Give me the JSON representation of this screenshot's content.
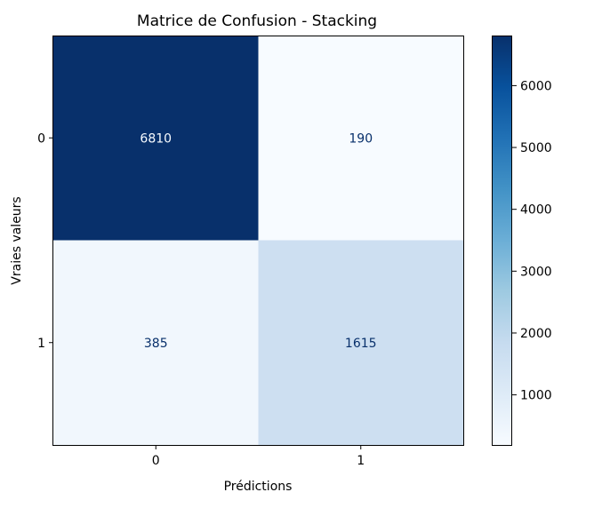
{
  "chart_data": {
    "type": "heatmap",
    "title": "Matrice de Confusion - Stacking",
    "xlabel": "Prédictions",
    "ylabel": "Vraies valeurs",
    "x_categories": [
      "0",
      "1"
    ],
    "y_categories": [
      "0",
      "1"
    ],
    "values": [
      [
        6810,
        190
      ],
      [
        385,
        1615
      ]
    ],
    "colormap": "Blues",
    "colorbar": {
      "range": [
        190,
        6810
      ],
      "ticks": [
        "1000",
        "2000",
        "3000",
        "4000",
        "5000",
        "6000"
      ]
    },
    "colors": {
      "low": "#f7fbff",
      "high": "#08306b",
      "text_on_dark": "#f7fbff",
      "text_on_light": "#08306b"
    }
  }
}
